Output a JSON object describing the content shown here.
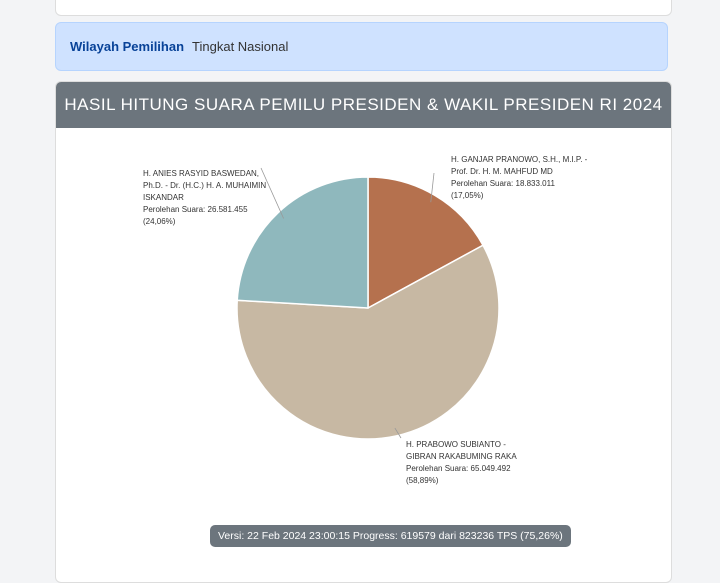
{
  "wilayah": {
    "label": "Wilayah Pemilihan",
    "value": "Tingkat Nasional"
  },
  "header": {
    "title": "HASIL HITUNG SUARA PEMILU PRESIDEN & WAKIL PRESIDEN RI 2024"
  },
  "chart_data": {
    "type": "pie",
    "start": "top",
    "direction": "clockwise",
    "slices": [
      {
        "name": "H. GANJAR PRANOWO, S.H., M.I.P. - Prof. Dr. H. M. MAHFUD MD",
        "votes_label": "Perolehan Suara: 18.833.011",
        "pct_label": "(17,05%)",
        "value": 18833011,
        "percent": 17.05,
        "color": "#b5714e"
      },
      {
        "name": "H. PRABOWO SUBIANTO - GIBRAN RAKABUMING RAKA",
        "votes_label": "Perolehan Suara: 65.049.492",
        "pct_label": "(58,89%)",
        "value": 65049492,
        "percent": 58.89,
        "color": "#c7b8a3"
      },
      {
        "name": "H. ANIES RASYID BASWEDAN, Ph.D. - Dr. (H.C.) H. A. MUHAIMIN ISKANDAR",
        "votes_label": "Perolehan Suara: 26.581.455",
        "pct_label": "(24,06%)",
        "value": 26581455,
        "percent": 24.06,
        "color": "#8fb8bd"
      }
    ]
  },
  "version": "Versi: 22 Feb 2024 23:00:15 Progress: 619579 dari 823236 TPS (75,26%)"
}
